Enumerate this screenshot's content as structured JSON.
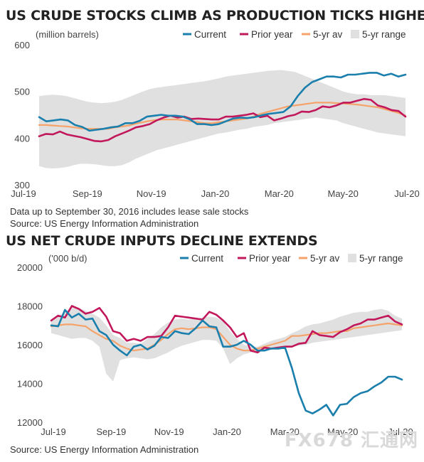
{
  "chart_data": [
    {
      "type": "line",
      "title": "US CRUDE STOCKS CLIMB AS PRODUCTION TICKS HIGHER",
      "ylabel": "(million barrels)",
      "ylim": [
        300,
        600
      ],
      "yticks": [
        "300",
        "400",
        "500",
        "600"
      ],
      "xticks": [
        "Jul-19",
        "Sep-19",
        "Nov-19",
        "Jan-20",
        "Mar-20",
        "May-20",
        "Jul-20"
      ],
      "legend_position": "top-right",
      "grid": false,
      "notes": [
        "Data up to September 30, 2016 includes lease sale stocks",
        "Source: US Energy Information Administration"
      ],
      "series": [
        {
          "name": "Current",
          "color": "#1a7fad",
          "values": [
            445,
            436,
            438,
            440,
            438,
            428,
            424,
            416,
            418,
            420,
            423,
            425,
            432,
            432,
            437,
            446,
            448,
            450,
            448,
            448,
            446,
            440,
            430,
            430,
            428,
            430,
            436,
            442,
            444,
            443,
            445,
            449,
            452,
            454,
            456,
            468,
            490,
            508,
            520,
            526,
            532,
            532,
            530,
            536,
            536,
            538,
            540,
            540,
            534,
            538,
            532,
            536
          ]
        },
        {
          "name": "Prior year",
          "color": "#c2185b",
          "values": [
            404,
            409,
            408,
            414,
            408,
            405,
            402,
            398,
            394,
            393,
            396,
            404,
            410,
            416,
            423,
            426,
            430,
            438,
            444,
            448,
            444,
            446,
            441,
            442,
            441,
            440,
            440,
            446,
            446,
            448,
            450,
            453,
            445,
            448,
            438,
            442,
            447,
            450,
            457,
            456,
            460,
            468,
            466,
            470,
            476,
            476,
            480,
            484,
            482,
            470,
            466,
            460,
            458,
            446
          ]
        },
        {
          "name": "5-yr av",
          "color": "#f5a36b",
          "values": [
            428,
            428,
            427,
            426,
            425,
            423,
            421,
            420,
            420,
            420,
            420,
            423,
            425,
            427,
            431,
            434,
            437,
            439,
            440,
            440,
            440,
            438,
            436,
            434,
            432,
            432,
            434,
            436,
            438,
            440,
            442,
            446,
            452,
            456,
            460,
            464,
            468,
            470,
            472,
            474,
            476,
            476,
            476,
            475,
            474,
            473,
            472,
            470,
            468,
            466,
            462,
            458,
            454,
            448
          ]
        },
        {
          "name": "5-yr range",
          "color": "#e0e0e0",
          "upper": [
            490,
            492,
            493,
            492,
            490,
            486,
            482,
            478,
            476,
            475,
            476,
            478,
            482,
            488,
            494,
            500,
            505,
            508,
            510,
            512,
            514,
            516,
            518,
            520,
            522,
            525,
            528,
            532,
            534,
            536,
            538,
            540,
            542,
            544,
            545,
            546,
            544,
            542,
            536,
            530,
            524,
            518,
            512,
            506,
            500,
            496,
            494,
            494,
            492,
            492,
            492,
            490,
            488,
            486
          ],
          "lower": [
            340,
            336,
            335,
            336,
            338,
            342,
            345,
            345,
            344,
            342,
            340,
            340,
            342,
            348,
            356,
            362,
            368,
            374,
            378,
            382,
            386,
            390,
            394,
            398,
            402,
            406,
            410,
            412,
            415,
            418,
            420,
            424,
            426,
            428,
            432,
            434,
            436,
            438,
            440,
            442,
            444,
            442,
            440,
            438,
            432,
            428,
            424,
            420,
            416,
            412,
            410,
            408,
            406,
            404
          ]
        }
      ]
    },
    {
      "type": "line",
      "title": "US NET CRUDE INPUTS DECLINE EXTENDS",
      "ylabel": "('000 b/d)",
      "ylim": [
        12000,
        20000
      ],
      "yticks": [
        "12000",
        "14000",
        "16000",
        "18000",
        "20000"
      ],
      "xticks": [
        "Jul-19",
        "Sep-19",
        "Nov-19",
        "Jan-20",
        "Mar-20",
        "May-20",
        "Jul-20"
      ],
      "legend_position": "top-right",
      "grid": false,
      "notes": [
        "Source: US Energy Information Administration"
      ],
      "series": [
        {
          "name": "Current",
          "color": "#1a7fad",
          "values": [
            17000,
            16950,
            17800,
            17400,
            17600,
            17300,
            17350,
            16700,
            16500,
            16000,
            15700,
            15450,
            15900,
            16000,
            15750,
            15950,
            16400,
            16350,
            16700,
            16600,
            16550,
            16850,
            17250,
            16950,
            16900,
            15900,
            15900,
            16000,
            16200,
            16000,
            15700,
            15700,
            15800,
            15800,
            15850,
            14800,
            13500,
            12600,
            12450,
            12650,
            12900,
            12350,
            12900,
            12950,
            13300,
            13500,
            13600,
            13850,
            14050,
            14350,
            14350,
            14200
          ]
        },
        {
          "name": "Prior year",
          "color": "#c2185b",
          "values": [
            17250,
            17500,
            17400,
            18000,
            17850,
            17600,
            17700,
            17900,
            17450,
            16700,
            16600,
            16200,
            16300,
            16200,
            16400,
            16400,
            16450,
            16900,
            17500,
            17450,
            17400,
            17350,
            17300,
            17700,
            17550,
            17250,
            16900,
            16400,
            16600,
            15700,
            15600,
            15850,
            15800,
            15850,
            15900,
            15900,
            16050,
            16100,
            16700,
            16500,
            16450,
            16400,
            16650,
            16800,
            17000,
            17100,
            17300,
            17300,
            17400,
            17500,
            17200,
            17050
          ]
        },
        {
          "name": "5-yr av",
          "color": "#f5a36b",
          "values": [
            16950,
            17000,
            17050,
            17050,
            17000,
            16950,
            16700,
            16500,
            16300,
            16200,
            15950,
            15800,
            15700,
            15750,
            15800,
            16000,
            16250,
            16550,
            16800,
            16850,
            16800,
            16850,
            16900,
            16900,
            16800,
            16400,
            16000,
            15800,
            15700,
            15700,
            15800,
            15900,
            16000,
            16100,
            16200,
            16450,
            16450,
            16500,
            16550,
            16600,
            16600,
            16650,
            16700,
            16700,
            16850,
            16900,
            16950,
            17000,
            17050,
            17100,
            17050,
            17000
          ]
        },
        {
          "name": "5-yr range",
          "color": "#e0e0e0",
          "upper": [
            17200,
            17450,
            17700,
            17900,
            17900,
            17750,
            17600,
            17400,
            17000,
            16500,
            16350,
            16100,
            16100,
            16050,
            16300,
            16550,
            16900,
            17150,
            17300,
            17350,
            17300,
            17350,
            17400,
            17450,
            17400,
            17200,
            16700,
            16300,
            16000,
            15900,
            15900,
            16050,
            16200,
            16300,
            16400,
            16600,
            16750,
            16950,
            17050,
            17100,
            17200,
            17300,
            17450,
            17550,
            17650,
            17700,
            17700,
            17800,
            17850,
            17750,
            17500,
            17350
          ],
          "lower": [
            16600,
            16500,
            16400,
            16300,
            16350,
            16350,
            16200,
            15900,
            14500,
            14100,
            15200,
            15300,
            15350,
            15300,
            15250,
            15300,
            15450,
            15600,
            15800,
            15950,
            16050,
            16150,
            16250,
            16250,
            16200,
            15800,
            15000,
            15300,
            15500,
            15600,
            15650,
            15700,
            15750,
            15800,
            15850,
            15900,
            15950,
            16000,
            16100,
            16150,
            16200,
            16250,
            16300,
            16350,
            16400,
            16450,
            16500,
            16550,
            16600,
            16650,
            16700,
            16750
          ]
        }
      ]
    }
  ],
  "watermark": "FX678 汇通网"
}
